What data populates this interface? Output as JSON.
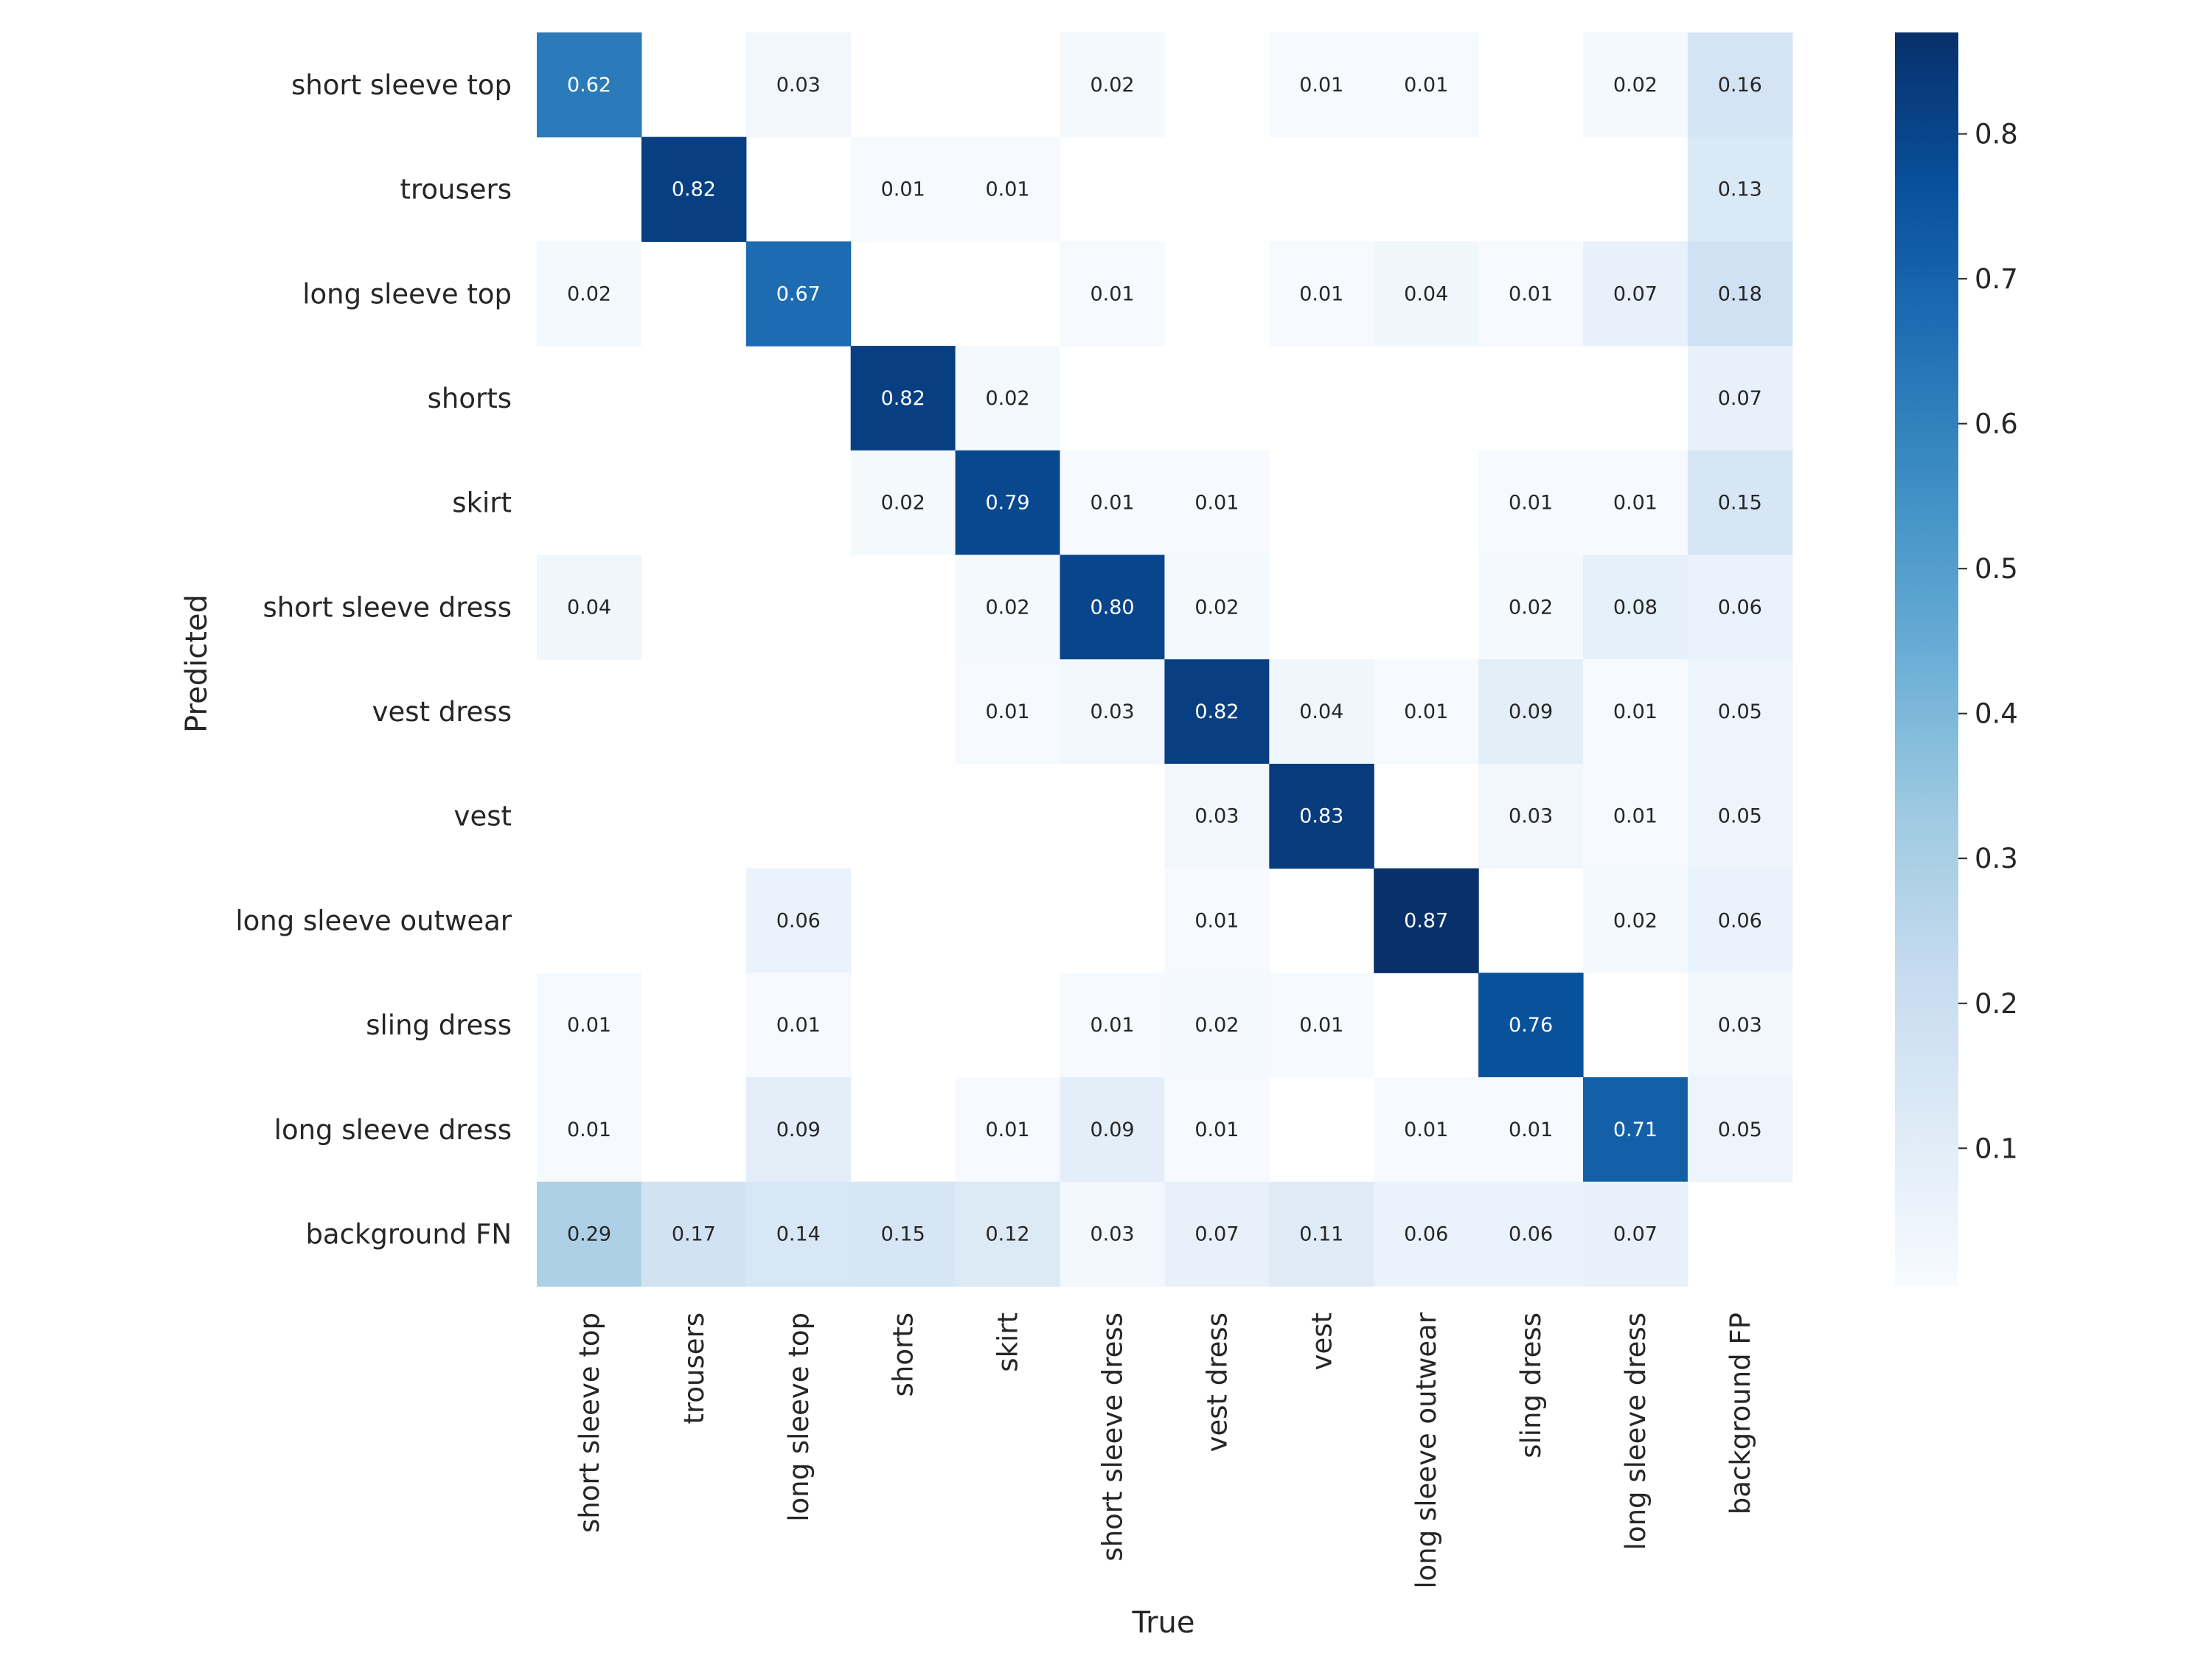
{
  "chart_data": {
    "type": "heatmap",
    "title": "",
    "xlabel": "True",
    "ylabel": "Predicted",
    "x_categories": [
      "short sleeve top",
      "trousers",
      "long sleeve top",
      "shorts",
      "skirt",
      "short sleeve dress",
      "vest dress",
      "vest",
      "long sleeve outwear",
      "sling dress",
      "long sleeve dress",
      "background FP"
    ],
    "y_categories": [
      "short sleeve top",
      "trousers",
      "long sleeve top",
      "shorts",
      "skirt",
      "short sleeve dress",
      "vest dress",
      "vest",
      "long sleeve outwear",
      "sling dress",
      "long sleeve dress",
      "background FN"
    ],
    "values": [
      [
        0.62,
        null,
        0.03,
        null,
        null,
        0.02,
        null,
        0.01,
        0.01,
        null,
        0.02,
        0.16
      ],
      [
        null,
        0.82,
        null,
        0.01,
        0.01,
        null,
        null,
        null,
        null,
        null,
        null,
        0.13
      ],
      [
        0.02,
        null,
        0.67,
        null,
        null,
        0.01,
        null,
        0.01,
        0.04,
        0.01,
        0.07,
        0.18
      ],
      [
        null,
        null,
        null,
        0.82,
        0.02,
        null,
        null,
        null,
        null,
        null,
        null,
        0.07
      ],
      [
        null,
        null,
        null,
        0.02,
        0.79,
        0.01,
        0.01,
        null,
        null,
        0.01,
        0.01,
        0.15
      ],
      [
        0.04,
        null,
        null,
        null,
        0.02,
        0.8,
        0.02,
        null,
        null,
        0.02,
        0.08,
        0.06
      ],
      [
        null,
        null,
        null,
        null,
        0.01,
        0.03,
        0.82,
        0.04,
        0.01,
        0.09,
        0.01,
        0.05
      ],
      [
        null,
        null,
        null,
        null,
        null,
        null,
        0.03,
        0.83,
        null,
        0.03,
        0.01,
        0.05
      ],
      [
        null,
        null,
        0.06,
        null,
        null,
        null,
        0.01,
        null,
        0.87,
        null,
        0.02,
        0.06
      ],
      [
        0.01,
        null,
        0.01,
        null,
        null,
        0.01,
        0.02,
        0.01,
        null,
        0.76,
        null,
        0.03
      ],
      [
        0.01,
        null,
        0.09,
        null,
        0.01,
        0.09,
        0.01,
        null,
        0.01,
        0.01,
        0.71,
        0.05
      ],
      [
        0.29,
        0.17,
        0.14,
        0.15,
        0.12,
        0.03,
        0.07,
        0.11,
        0.06,
        0.06,
        0.07,
        null
      ]
    ],
    "value_format": "0.00",
    "colorbar": {
      "colormap": "Blues",
      "range": [
        0.005,
        0.87
      ],
      "ticks": [
        0.1,
        0.2,
        0.3,
        0.4,
        0.5,
        0.6,
        0.7,
        0.8
      ],
      "tick_labels": [
        "0.1",
        "0.2",
        "0.3",
        "0.4",
        "0.5",
        "0.6",
        "0.7",
        "0.8"
      ]
    },
    "grid": false,
    "legend": "colorbar-right"
  }
}
